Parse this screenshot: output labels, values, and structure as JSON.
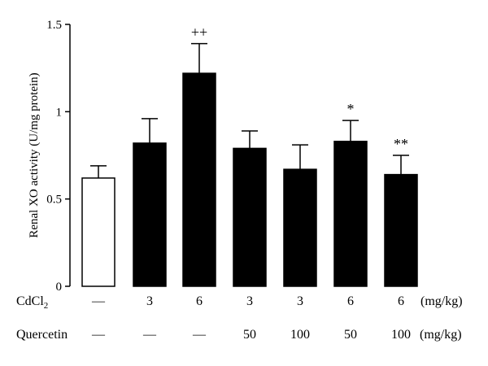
{
  "chart_data": {
    "type": "bar",
    "ylabel": "Renal XO activity (U/mg protein)",
    "ylim": [
      0,
      1.5
    ],
    "yticks": [
      {
        "value": 0,
        "label": "0"
      },
      {
        "value": 0.5,
        "label": "0.5"
      },
      {
        "value": 1,
        "label": "1"
      },
      {
        "value": 1.5,
        "label": "1.5"
      }
    ],
    "bars": [
      {
        "value": 0.62,
        "error": 0.07,
        "fill": "#ffffff",
        "annotation": ""
      },
      {
        "value": 0.82,
        "error": 0.14,
        "fill": "#000000",
        "annotation": ""
      },
      {
        "value": 1.22,
        "error": 0.17,
        "fill": "#000000",
        "annotation": "++"
      },
      {
        "value": 0.79,
        "error": 0.1,
        "fill": "#000000",
        "annotation": ""
      },
      {
        "value": 0.67,
        "error": 0.14,
        "fill": "#000000",
        "annotation": ""
      },
      {
        "value": 0.83,
        "error": 0.12,
        "fill": "#000000",
        "annotation": "*"
      },
      {
        "value": 0.64,
        "error": 0.11,
        "fill": "#000000",
        "annotation": "**"
      }
    ],
    "row_labels": {
      "cdcl2_main": "CdCl",
      "cdcl2_sub": "2",
      "quercetin": "Quercetin"
    },
    "cdcl2_values": [
      "—",
      "3",
      "6",
      "3",
      "3",
      "6",
      "6"
    ],
    "quercetin_values": [
      "—",
      "—",
      "—",
      "50",
      "100",
      "50",
      "100"
    ],
    "unit": "(mg/kg)",
    "colors": {
      "bar_edge": "#000000",
      "axis": "#000000"
    }
  }
}
